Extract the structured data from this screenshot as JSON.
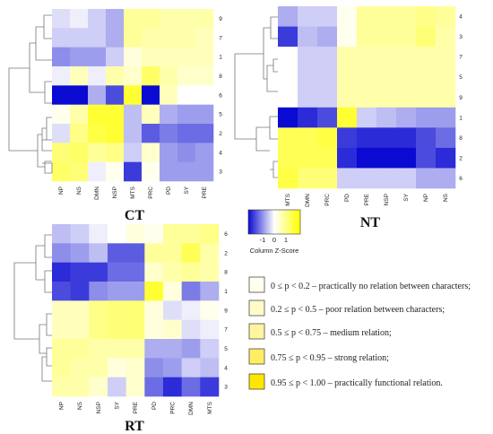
{
  "colors": {
    "low": "#0a0ad2",
    "mid": "#ffffff",
    "high": "#ffff00",
    "dendro": "#777777",
    "legend_border": "#333333"
  },
  "chart_data": [
    {
      "type": "heatmap",
      "title": "CT",
      "columns": [
        "NP",
        "NS",
        "DMN",
        "NSP",
        "MTS",
        "PRC",
        "PD",
        "SY",
        "PRE"
      ],
      "rows": [
        "9",
        "7",
        "1",
        "8",
        "6",
        "5",
        "2",
        "4",
        "3"
      ],
      "values": [
        [
          -0.2,
          -0.1,
          -0.3,
          -0.5,
          0.6,
          0.6,
          0.5,
          0.5,
          0.5
        ],
        [
          -0.3,
          -0.3,
          -0.3,
          -0.5,
          0.6,
          0.5,
          0.5,
          0.5,
          0.4
        ],
        [
          -0.7,
          -0.6,
          -0.6,
          -0.3,
          0.2,
          0.4,
          0.4,
          0.4,
          0.4
        ],
        [
          -0.1,
          0.4,
          -0.1,
          0.5,
          0.3,
          0.9,
          0.5,
          0.3,
          0.3
        ],
        [
          -1.6,
          -1.6,
          -0.5,
          -1.1,
          1.2,
          -1.6,
          0.4,
          0.0,
          0.0
        ],
        [
          0.1,
          0.5,
          1.2,
          1.2,
          -0.4,
          0.4,
          -0.5,
          -0.6,
          -0.6
        ],
        [
          -0.2,
          0.7,
          1.1,
          1.2,
          -0.4,
          -1.0,
          -0.8,
          -0.9,
          -0.9
        ],
        [
          0.8,
          0.9,
          0.6,
          0.7,
          -0.3,
          0.3,
          -0.6,
          -0.7,
          -0.6
        ],
        [
          0.9,
          0.8,
          -0.1,
          0.1,
          -1.2,
          0.1,
          -0.6,
          -0.6,
          -0.6
        ]
      ]
    },
    {
      "type": "heatmap",
      "title": "NT",
      "columns": [
        "MTS",
        "DMN",
        "PRC",
        "PD",
        "PRE",
        "NSP",
        "SY",
        "NP",
        "NS"
      ],
      "rows": [
        "4",
        "3",
        "7",
        "5",
        "9",
        "1",
        "8",
        "2",
        "6"
      ],
      "values": [
        [
          -0.5,
          -0.3,
          -0.3,
          0.1,
          0.6,
          0.6,
          0.6,
          0.7,
          0.6
        ],
        [
          -1.2,
          -0.4,
          -0.5,
          0.1,
          0.6,
          0.6,
          0.6,
          0.8,
          0.5
        ],
        [
          0.0,
          -0.3,
          -0.3,
          0.5,
          0.5,
          0.5,
          0.5,
          0.5,
          0.5
        ],
        [
          0.0,
          -0.3,
          -0.3,
          0.5,
          0.5,
          0.5,
          0.5,
          0.5,
          0.5
        ],
        [
          0.0,
          -0.3,
          -0.3,
          0.5,
          0.5,
          0.5,
          0.5,
          0.5,
          0.5
        ],
        [
          -1.5,
          -1.3,
          -1.1,
          1.2,
          -0.3,
          -0.4,
          -0.5,
          -0.6,
          -0.6
        ],
        [
          1.0,
          1.0,
          1.1,
          -1.2,
          -1.3,
          -1.3,
          -1.3,
          -1.1,
          -0.9
        ],
        [
          1.0,
          1.0,
          1.0,
          -1.3,
          -1.5,
          -1.5,
          -1.5,
          -1.1,
          -1.3
        ],
        [
          1.1,
          0.8,
          0.8,
          -0.3,
          -0.3,
          -0.3,
          -0.3,
          -0.5,
          -0.5
        ]
      ]
    },
    {
      "type": "heatmap",
      "title": "RT",
      "columns": [
        "NP",
        "NS",
        "NSP",
        "SY",
        "PRE",
        "PD",
        "PRC",
        "DMN",
        "MTS"
      ],
      "rows": [
        "6",
        "2",
        "8",
        "1",
        "9",
        "7",
        "5",
        "4",
        "3"
      ],
      "values": [
        [
          -0.4,
          -0.3,
          -0.1,
          0.0,
          0.2,
          0.1,
          0.6,
          0.6,
          0.7
        ],
        [
          -0.7,
          -0.6,
          -0.4,
          -1.0,
          -1.0,
          0.6,
          0.6,
          1.0,
          0.5
        ],
        [
          -1.3,
          -1.2,
          -1.2,
          -0.9,
          -0.9,
          0.3,
          0.5,
          0.6,
          0.5
        ],
        [
          -1.1,
          -1.2,
          -0.7,
          -0.6,
          -0.6,
          1.2,
          0.2,
          -0.8,
          -0.5
        ],
        [
          0.4,
          0.4,
          0.7,
          0.8,
          0.8,
          0.2,
          -0.2,
          -0.1,
          0.1
        ],
        [
          0.4,
          0.4,
          0.7,
          0.8,
          0.8,
          0.2,
          0.3,
          -0.2,
          -0.1
        ],
        [
          0.6,
          0.6,
          0.5,
          0.5,
          0.5,
          -0.5,
          -0.5,
          -0.6,
          -0.3
        ],
        [
          0.6,
          0.5,
          0.5,
          0.2,
          0.3,
          -0.7,
          -0.6,
          -0.3,
          -0.4
        ],
        [
          0.5,
          0.5,
          0.3,
          -0.3,
          0.3,
          -0.9,
          -1.3,
          -0.9,
          -1.2
        ]
      ]
    }
  ],
  "color_key": {
    "title": "Column Z-Score",
    "ticks": [
      "-1",
      "0",
      "1"
    ]
  },
  "legend": [
    {
      "text": "0 ≤ p < 0.2 – practically no relation between characters;",
      "color": "#ffffef"
    },
    {
      "text": "0.2 ≤ p < 0.5 – poor relation between characters;",
      "color": "#fffbc8"
    },
    {
      "text": "0.5 ≤ p < 0.75 – medium relation;",
      "color": "#fff4a0"
    },
    {
      "text": "0.75 ≤ p < 0.95 – strong relation;",
      "color": "#ffee64"
    },
    {
      "text": "0.95 ≤ p < 1.00 – practically functional relation.",
      "color": "#ffe600"
    }
  ]
}
